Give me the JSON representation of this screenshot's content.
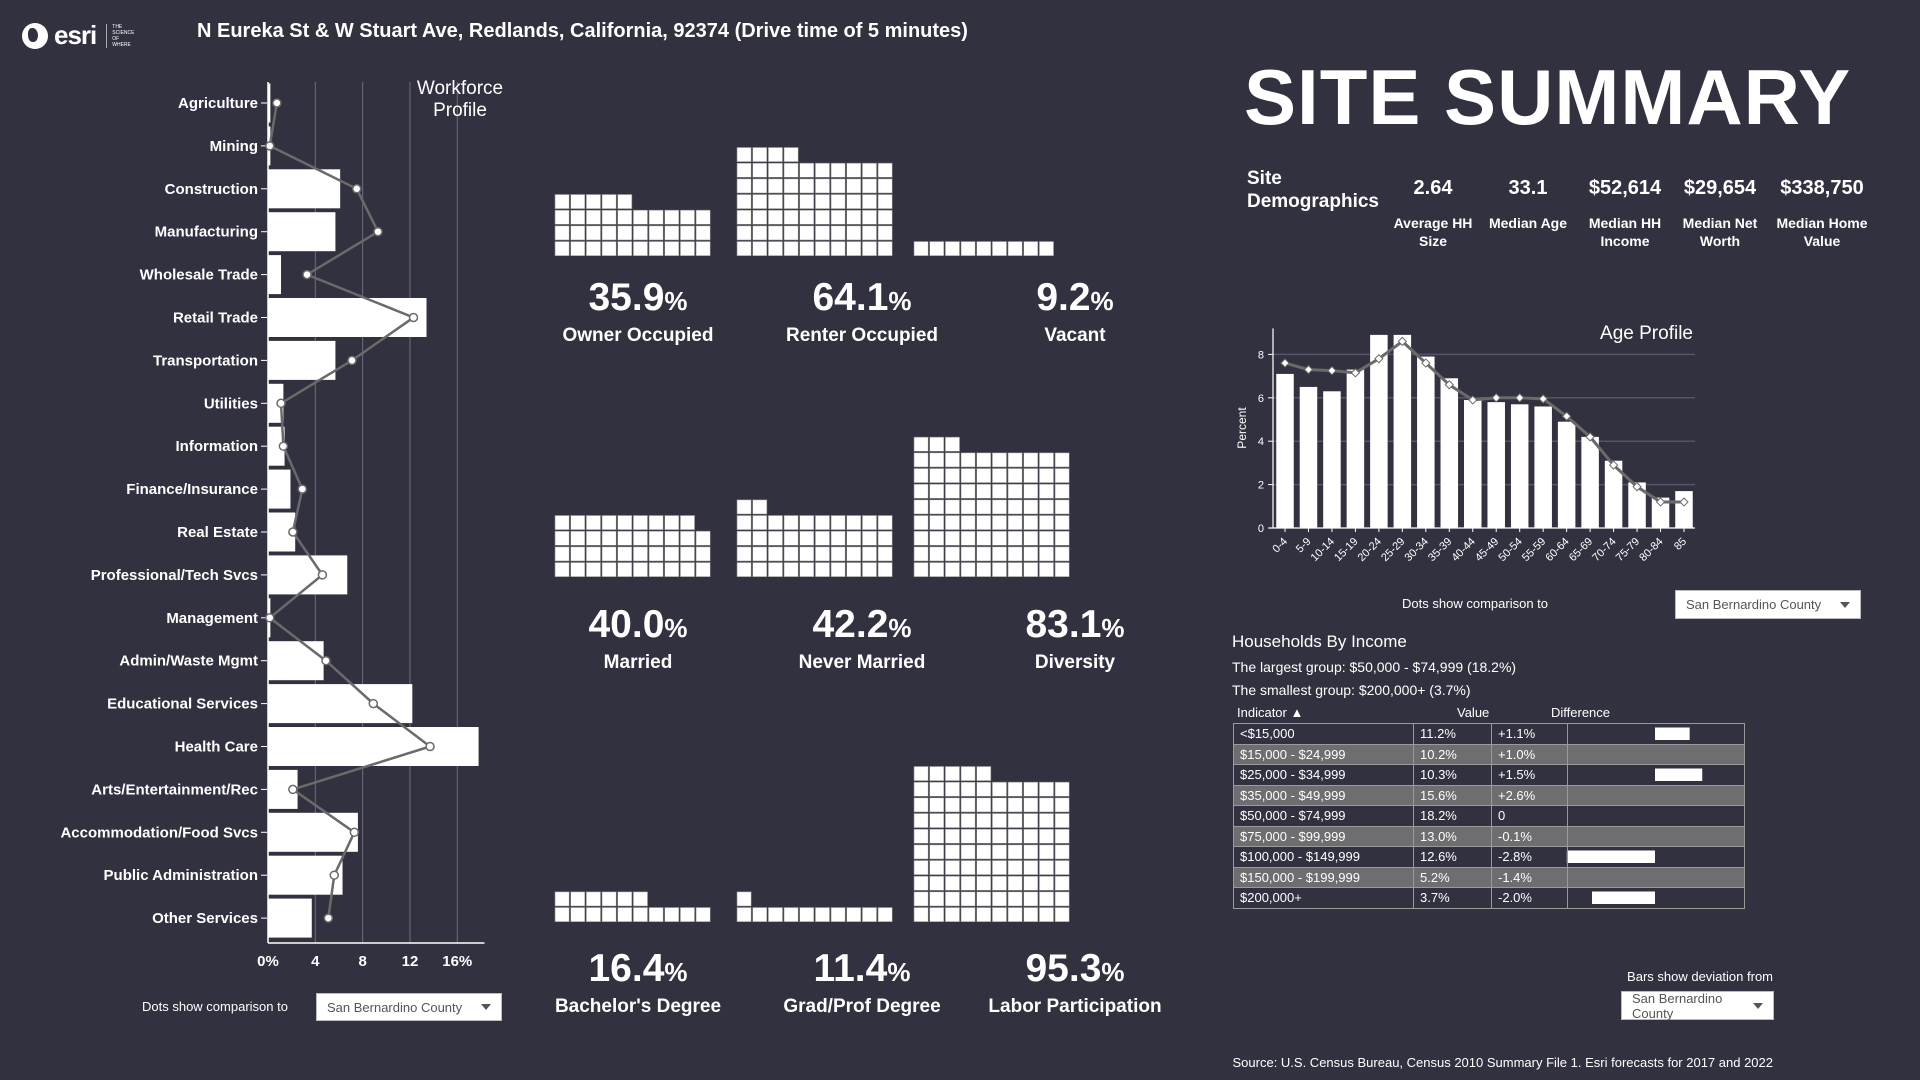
{
  "header": {
    "logo_text": "esri",
    "logo_tagline": "The Science of Where",
    "title": "N Eureka St & W Stuart Ave, Redlands, California, 92374 (Drive time of 5 minutes)"
  },
  "colors": {
    "background": "#323140",
    "bar": "#ffffff",
    "dots_line": "#6a6a6a",
    "table_alt_row": "#6e6d70"
  },
  "workforce": {
    "title": "Workforce Profile",
    "compare_label": "Dots show comparison to",
    "compare_value": "San Bernardino County"
  },
  "chart_data": [
    {
      "type": "bar",
      "orientation": "horizontal",
      "title": "Workforce Profile",
      "categories": [
        "Agriculture",
        "Mining",
        "Construction",
        "Manufacturing",
        "Wholesale Trade",
        "Retail Trade",
        "Transportation",
        "Utilities",
        "Information",
        "Finance/Insurance",
        "Real Estate",
        "Professional/Tech Svcs",
        "Management",
        "Admin/Waste Mgmt",
        "Educational Services",
        "Health Care",
        "Arts/Entertainment/Rec",
        "Accommodation/Food Svcs",
        "Public Administration",
        "Other Services"
      ],
      "values": [
        0.2,
        0.2,
        6.1,
        5.7,
        1.1,
        13.4,
        5.7,
        1.3,
        1.4,
        1.9,
        2.3,
        6.7,
        0.2,
        4.7,
        12.2,
        17.8,
        2.5,
        7.6,
        6.3,
        3.7
      ],
      "comparison": {
        "name": "San Bernardino County",
        "values": [
          0.75,
          0.15,
          7.5,
          9.3,
          3.3,
          12.3,
          7.1,
          1.1,
          1.3,
          2.9,
          2.1,
          4.6,
          0.15,
          4.9,
          8.9,
          13.7,
          2.1,
          7.3,
          5.6,
          5.1
        ]
      },
      "xticks": [
        0,
        4,
        8,
        12,
        16
      ],
      "xtick_labels": [
        "0%",
        "4",
        "8",
        "12",
        "16%"
      ],
      "xlim": [
        0,
        18.3
      ],
      "grid": true
    },
    {
      "type": "bar",
      "title": "Age Profile",
      "ylabel": "Percent",
      "categories": [
        "0-4",
        "5-9",
        "10-14",
        "15-19",
        "20-24",
        "25-29",
        "30-34",
        "35-39",
        "40-44",
        "45-49",
        "50-54",
        "55-59",
        "60-64",
        "65-69",
        "70-74",
        "75-79",
        "80-84",
        "85"
      ],
      "values": [
        7.1,
        6.5,
        6.3,
        7.3,
        8.9,
        8.9,
        7.9,
        6.9,
        5.9,
        5.8,
        5.7,
        5.6,
        4.9,
        4.2,
        3.1,
        2.1,
        1.4,
        1.7
      ],
      "comparison": {
        "name": "San Bernardino County",
        "values": [
          7.6,
          7.3,
          7.25,
          7.15,
          7.8,
          8.6,
          7.6,
          6.6,
          5.9,
          6.0,
          6.0,
          5.95,
          5.15,
          4.2,
          2.9,
          1.9,
          1.2,
          1.2
        ]
      },
      "yticks": [
        0,
        2,
        4,
        6,
        8
      ],
      "ylim": [
        0,
        9.2
      ],
      "grid": true
    }
  ],
  "metrics": [
    {
      "value": "35.9",
      "unit": "%",
      "label": "Owner Occupied",
      "pct": 35.9
    },
    {
      "value": "64.1",
      "unit": "%",
      "label": "Renter Occupied",
      "pct": 64.1
    },
    {
      "value": "9.2",
      "unit": "%",
      "label": "Vacant",
      "pct": 9.2
    },
    {
      "value": "40.0",
      "unit": "%",
      "label": "Married",
      "pct": 39.9
    },
    {
      "value": "42.2",
      "unit": "%",
      "label": "Never Married",
      "pct": 42.2
    },
    {
      "value": "83.1",
      "unit": "%",
      "label": "Diversity",
      "pct": 83.1
    },
    {
      "value": "16.4",
      "unit": "%",
      "label": "Bachelor's Degree",
      "pct": 16.4
    },
    {
      "value": "11.4",
      "unit": "%",
      "label": "Grad/Prof Degree",
      "pct": 11.4
    },
    {
      "value": "95.3",
      "unit": "%",
      "label": "Labor Participation",
      "pct": 95.3
    }
  ],
  "summary": {
    "title": "SITE SUMMARY",
    "demographics_label": "Site Demographics",
    "items": [
      {
        "value": "2.64",
        "label": "Average HH Size"
      },
      {
        "value": "33.1",
        "label": "Median Age"
      },
      {
        "value": "$52,614",
        "label": "Median HH Income"
      },
      {
        "value": "$29,654",
        "label": "Median Net Worth"
      },
      {
        "value": "$338,750",
        "label": "Median Home Value"
      }
    ]
  },
  "age": {
    "title": "Age Profile",
    "ylabel": "Percent",
    "compare_label": "Dots show comparison to",
    "compare_value": "San Bernardino County"
  },
  "income": {
    "title": "Households By Income",
    "largest": "The largest group: $50,000 - $74,999 (18.2%)",
    "smallest": "The smallest group: $200,000+ (3.7%)",
    "headers": {
      "indicator": "Indicator ▲",
      "value": "Value",
      "difference": "Difference"
    },
    "rows": [
      {
        "indicator": "<$15,000",
        "value": "11.2%",
        "difference": "+1.1%",
        "diff": 1.1
      },
      {
        "indicator": "$15,000 - $24,999",
        "value": "10.2%",
        "difference": "+1.0%",
        "diff": 1.0
      },
      {
        "indicator": "$25,000 - $34,999",
        "value": "10.3%",
        "difference": "+1.5%",
        "diff": 1.5
      },
      {
        "indicator": "$35,000 - $49,999",
        "value": "15.6%",
        "difference": "+2.6%",
        "diff": 2.6
      },
      {
        "indicator": "$50,000 - $74,999",
        "value": "18.2%",
        "difference": "0",
        "diff": 0
      },
      {
        "indicator": "$75,000 - $99,999",
        "value": "13.0%",
        "difference": "-0.1%",
        "diff": -0.1
      },
      {
        "indicator": "$100,000 - $149,999",
        "value": "12.6%",
        "difference": "-2.8%",
        "diff": -2.8
      },
      {
        "indicator": "$150,000 - $199,999",
        "value": "5.2%",
        "difference": "-1.4%",
        "diff": -1.4
      },
      {
        "indicator": "$200,000+",
        "value": "3.7%",
        "difference": "-2.0%",
        "diff": -2.0
      }
    ],
    "compare_label": "Bars show deviation from",
    "compare_value": "San Bernardino County"
  },
  "source": "Source: U.S. Census Bureau, Census 2010 Summary File 1. Esri forecasts for 2017 and 2022"
}
